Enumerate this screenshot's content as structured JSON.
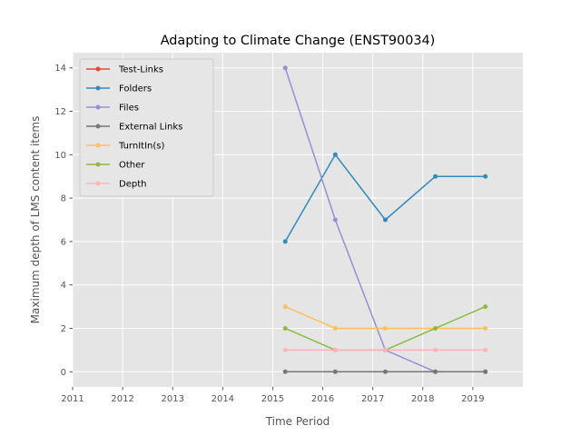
{
  "chart_data": {
    "type": "line",
    "title": "Adapting to Climate Change (ENST90034)",
    "xlabel": "Time Period",
    "ylabel": "Maximum depth of LMS content items",
    "xlim": [
      2011,
      2020
    ],
    "ylim": [
      -0.7,
      14.7
    ],
    "xticks": [
      "2011",
      "2012",
      "2013",
      "2014",
      "2015",
      "2016",
      "2017",
      "2018",
      "2019"
    ],
    "yticks": [
      "0",
      "2",
      "4",
      "6",
      "8",
      "10",
      "12",
      "14"
    ],
    "x": [
      2015.25,
      2016.25,
      2017.25,
      2018.25,
      2019.25
    ],
    "grid": true,
    "legend_position": "upper-left",
    "series": [
      {
        "name": "Test-Links",
        "color": "#e24a33",
        "values": [
          null,
          null,
          null,
          null,
          null
        ]
      },
      {
        "name": "Folders",
        "color": "#348abd",
        "values": [
          6,
          10,
          7,
          9,
          9
        ]
      },
      {
        "name": "Files",
        "color": "#988ed5",
        "values": [
          14,
          7,
          1,
          0,
          0
        ]
      },
      {
        "name": "External Links",
        "color": "#777777",
        "values": [
          0,
          0,
          0,
          0,
          0
        ]
      },
      {
        "name": "TurnItIn(s)",
        "color": "#fbc15e",
        "values": [
          3,
          2,
          2,
          2,
          2
        ]
      },
      {
        "name": "Other",
        "color": "#8eba42",
        "values": [
          2,
          1,
          1,
          2,
          3
        ]
      },
      {
        "name": "Depth",
        "color": "#ffb5b8",
        "values": [
          1,
          1,
          1,
          1,
          1
        ]
      }
    ]
  }
}
